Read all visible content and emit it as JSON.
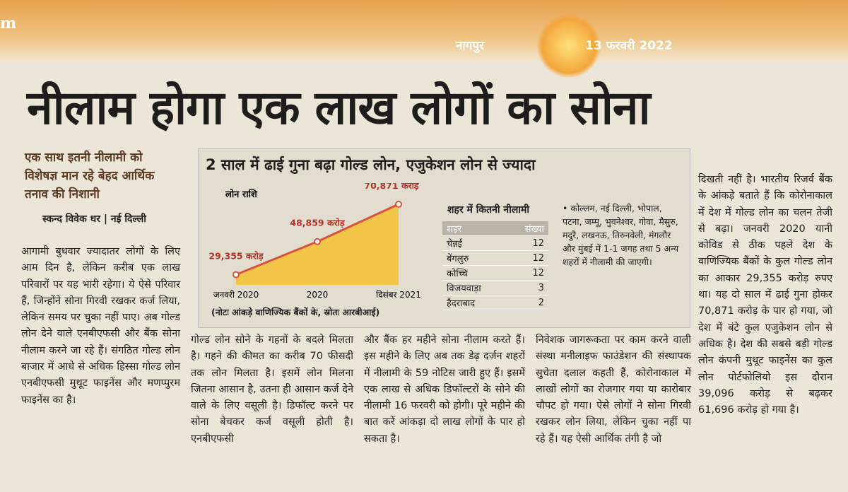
{
  "masthead": {
    "site": "m",
    "city": "नागपुर",
    "date": "13 फरवरी 2022"
  },
  "headline": "नीलाम होगा एक लाख लोगों का सोना",
  "intro": "एक साथ इतनी नीलामी को विशेषज्ञ मान रहे बेहद आर्थिक तनाव की निशानी",
  "byline": "स्कन्द विवेक धर | नई दिल्ली",
  "columns": [
    "आगामी बुधवार ज्यादातर लोगों के लिए आम दिन है, लेकिन करीब एक लाख परिवारों पर यह भारी रहेगा। ये ऐसे परिवार हैं, जिन्होंने सोना गिरवी रखकर कर्ज लिया, लेकिन समय पर चुका नहीं पाए। अब गोल्ड लोन देने वाले एनबीएफसी और बैंक सोना नीलाम करने जा रहे हैं। संगठित गोल्ड लोन बाजार में आधे से अधिक हिस्सा गोल्ड लोन एनबीएफसी मुथूट फाइनेंस और मणप्पुरम फाइनेंस का है।",
    "गोल्ड लोन सोने के गहनों के बदले मिलता है। गहने की कीमत का करीब 70 फीसदी तक लोन मिलता है। इसमें लोन मिलना जितना आसान है, उतना ही आसान कर्ज देने वाले के लिए वसूली है। डिफॉल्ट करने पर सोना बेचकर कर्ज वसूली होती है। एनबीएफसी",
    "और बैंक हर महीने सोना नीलाम करते हैं। इस महीने के लिए अब तक डेढ़ दर्जन शहरों में नीलामी के 59 नोटिस जारी हुए हैं। इसमें एक लाख से अधिक डिफॉल्टरों के सोने की नीलामी 16 फरवरी को होगी। पूरे महीने की बात करें आंकड़ा दो लाख लोगों के पार हो सकता है।",
    "निवेशक जागरूकता पर काम करने वाली संस्था मनीलाइफ फाउंडेशन की संस्थापक सुचेता दलाल कहती हैं, कोरोनाकाल में लाखों लोगों का रोजगार गया या कारोबार चौपट हो गया। ऐसे लोगों ने सोना गिरवी रखकर लोन लिया, लेकिन चुका नहीं पा रहे हैं। यह ऐसी आर्थिक तंगी है जो",
    "दिखती नहीं है। भारतीय रिजर्व बैंक के आंकड़े बताते हैं कि कोरोनाकाल में देश में गोल्ड लोन का चलन तेजी से बढ़ा। जनवरी 2020 यानी कोविड से ठीक पहले देश के वाणिज्यिक बैंकों के कुल गोल्ड लोन का आकार 29,355 करोड़ रुपए था। यह दो साल में ढाई गुना होकर 70,871 करोड़ के पार हो गया, जो देश में बंटे कुल एजुकेशन लोन से अधिक है। देश की सबसे बड़ी गोल्ड लोन कंपनी मुथूट फाइनेंस का कुल लोन पोर्टफोलियो इस दौरान 39,096 करोड़ से बढ़कर 61,696 करोड़ हो गया है।"
  ],
  "infographic": {
    "title": "2 साल में ढाई गुना बढ़ा गोल्ड लोन, एजुकेशन लोन से ज्यादा",
    "note": "(नोटः आंकड़े वाणिज्यिक बैंकों के, स्रोतः आरबीआई)",
    "table_title": "शहर में कितनी नीलामी",
    "table": {
      "header": [
        "शहर",
        "संख्या"
      ],
      "rows": [
        [
          "चेन्नई",
          "12"
        ],
        [
          "बेंगलुरु",
          "12"
        ],
        [
          "कोच्चि",
          "12"
        ],
        [
          "विजयवाड़ा",
          "3"
        ],
        [
          "हैदराबाद",
          "2"
        ]
      ]
    },
    "side_note": "• कोल्लम, नई दिल्ली, भोपाल, पटना, जम्मू, भुवनेश्वर, गोवा, मैसुरु, मदुरै, लखनऊ, तिरुनवेली, मंगलौर और मुंबई में 1-1 जगह तथा 5 अन्य शहरों में नीलामी की जाएगी।"
  },
  "chart_data": {
    "type": "line",
    "title": "लोन राशि",
    "categories": [
      "जनवरी 2020",
      "2020",
      "दिसंबर 2021"
    ],
    "values": [
      29355,
      48859,
      70871
    ],
    "value_labels": [
      "29,355 करोड़",
      "48,859 करोड़",
      "70,871 करोड़"
    ],
    "ylim": [
      25000,
      75000
    ],
    "color": "#d9533b",
    "fill": "#f3c64a"
  }
}
